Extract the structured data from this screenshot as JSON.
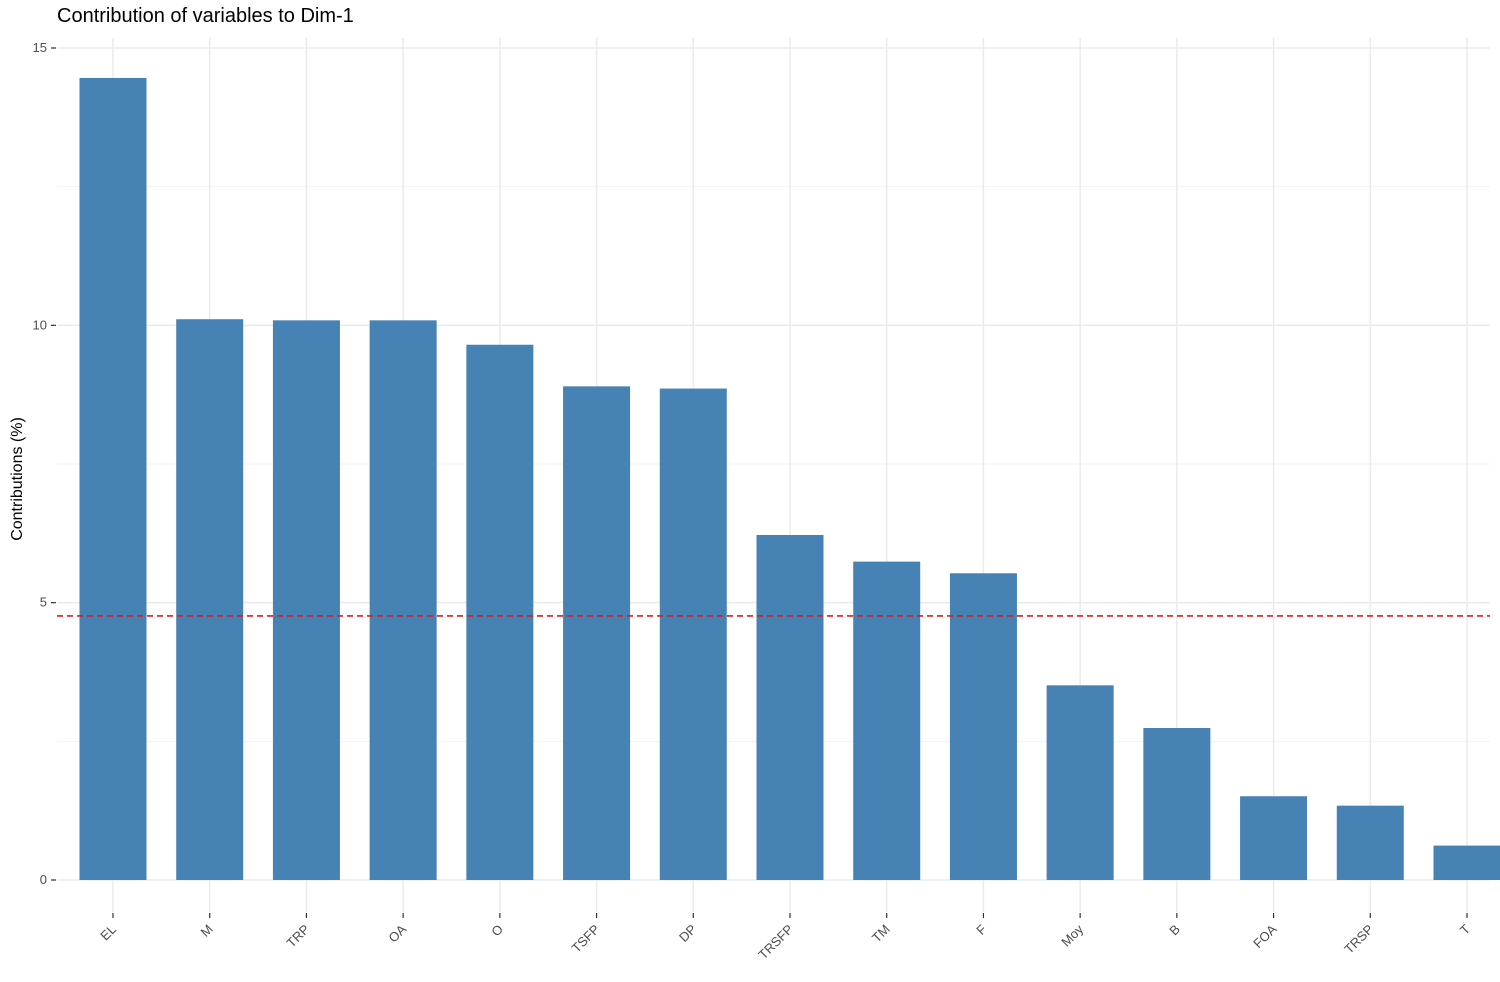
{
  "chart_data": {
    "type": "bar",
    "title": "Contribution of variables to Dim-1",
    "xlabel": "",
    "ylabel": "Contributions (%)",
    "categories": [
      "EL",
      "M",
      "TRP",
      "OA",
      "O",
      "TSFP",
      "DP",
      "TRSFP",
      "TM",
      "F",
      "Moy",
      "B",
      "FOA",
      "TRSP",
      "T"
    ],
    "values": [
      14.46,
      10.11,
      10.09,
      10.09,
      9.65,
      8.9,
      8.86,
      6.22,
      5.74,
      5.53,
      3.51,
      2.74,
      1.51,
      1.34,
      0.62
    ],
    "yticks": [
      0,
      5,
      10,
      15
    ],
    "ylim": [
      -0.85,
      15.15
    ],
    "reference_line": {
      "value": 4.76,
      "style": "dashed",
      "color": "#e41a1c"
    },
    "bar_color": "#4682b4",
    "grid": true,
    "legend": "none"
  }
}
